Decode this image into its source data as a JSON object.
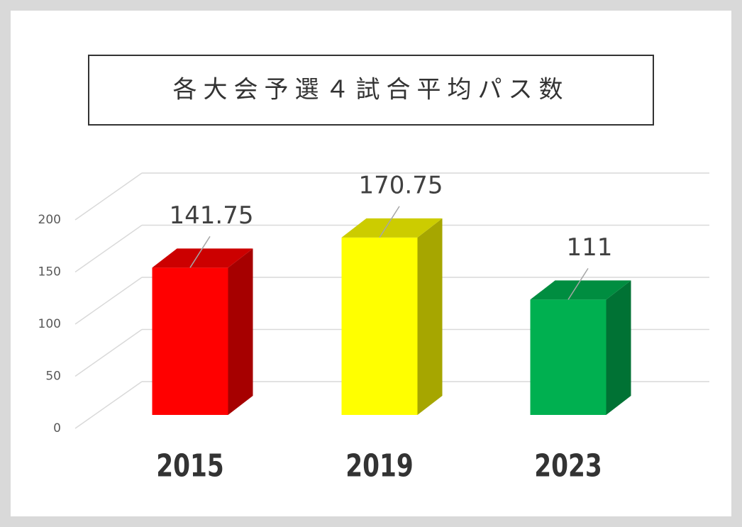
{
  "chart_data": {
    "type": "bar3d",
    "title": "各大会予選４試合平均パス数",
    "categories": [
      "2015",
      "2019",
      "2023"
    ],
    "values": [
      141.75,
      170.75,
      111
    ],
    "colors": [
      "#ff0000",
      "#ffff00",
      "#00b050"
    ],
    "ylim": [
      0,
      200
    ],
    "yticks": [
      0,
      50,
      100,
      150,
      200
    ],
    "grid": true
  }
}
